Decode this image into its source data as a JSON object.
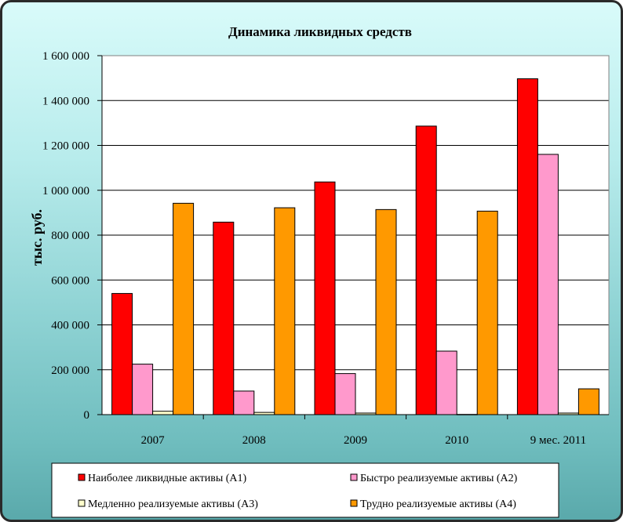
{
  "chart_data": {
    "type": "bar",
    "title": "Динамика ликвидных средств",
    "xlabel": "",
    "ylabel": "тыс. руб.",
    "ylim": [
      0,
      1600000
    ],
    "yticks": [
      0,
      200000,
      400000,
      600000,
      800000,
      1000000,
      1200000,
      1400000,
      1600000
    ],
    "ytick_labels": [
      "0",
      "200 000",
      "400 000",
      "600 000",
      "800 000",
      "1 000 000",
      "1 200 000",
      "1 400 000",
      "1 600 000"
    ],
    "grid": true,
    "legend_placement": "bottom",
    "categories": [
      "2007",
      "2008",
      "2009",
      "2010",
      "9 мес. 2011"
    ],
    "series": [
      {
        "name": "Наиболее ликвидные активы (А1)",
        "color": "#ff0000",
        "values": [
          540000,
          858000,
          1037000,
          1286000,
          1497000
        ]
      },
      {
        "name": "Быстро реализуемые активы (А2)",
        "color": "#ff99cc",
        "values": [
          225000,
          105000,
          183000,
          283000,
          1160000
        ]
      },
      {
        "name": "Медленно реализуемые активы (А3)",
        "color": "#ffffcc",
        "values": [
          15000,
          10000,
          7000,
          1000,
          7000
        ]
      },
      {
        "name": "Трудно реализуемые активы (А4)",
        "color": "#ff9900",
        "values": [
          942000,
          922000,
          914000,
          907000,
          115000
        ]
      }
    ]
  }
}
